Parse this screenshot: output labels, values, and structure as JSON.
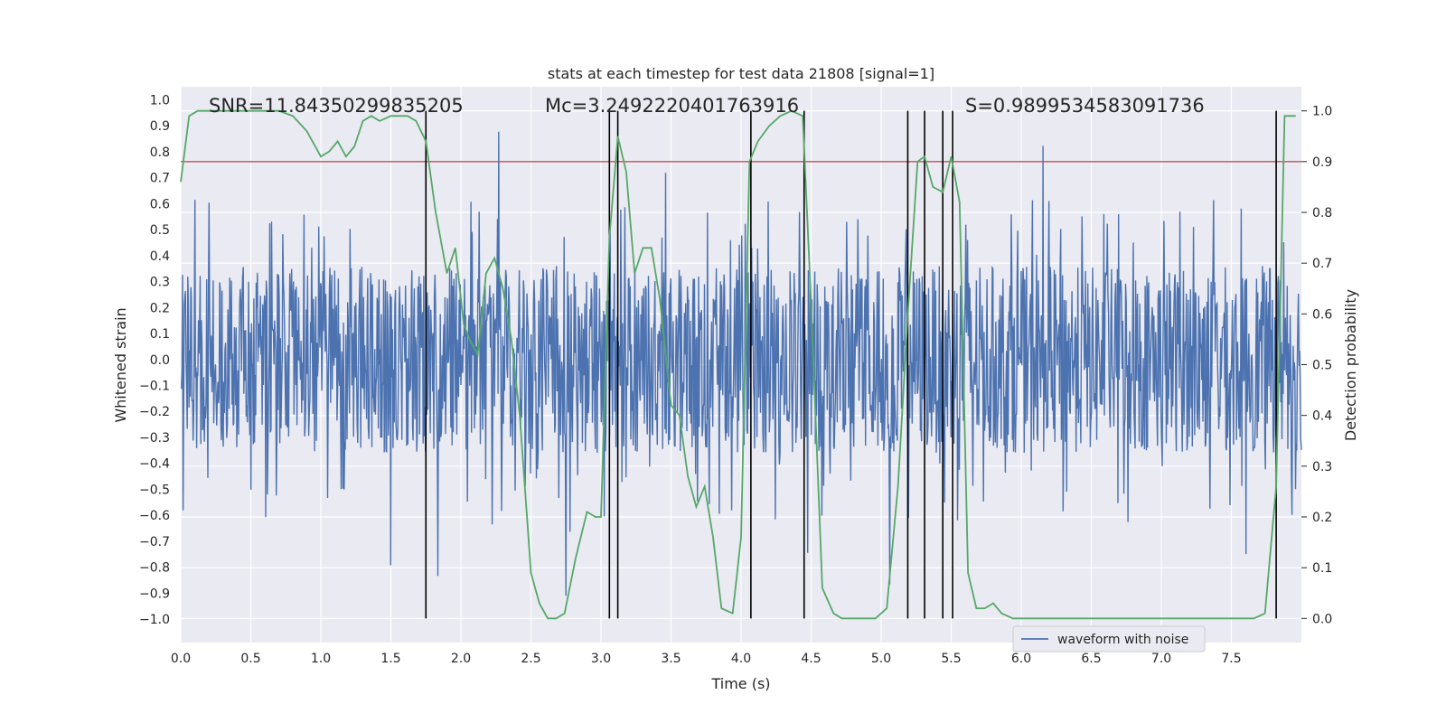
{
  "chart_data": {
    "type": "line",
    "title": "stats at each timestep for test data 21808 [signal=1]",
    "xlabel": "Time (s)",
    "ylabel_left": "Whitened strain",
    "ylabel_right": "Detection probability",
    "xlim": [
      0.0,
      8.0
    ],
    "ylim_left": [
      -1.09,
      1.05
    ],
    "ylim_right": [
      -0.0475,
      1.0475
    ],
    "x_ticks": [
      0.0,
      0.5,
      1.0,
      1.5,
      2.0,
      2.5,
      3.0,
      3.5,
      4.0,
      4.5,
      5.0,
      5.5,
      6.0,
      6.5,
      7.0,
      7.5
    ],
    "x_tick_labels": [
      "0.0",
      "0.5",
      "1.0",
      "1.5",
      "2.0",
      "2.5",
      "3.0",
      "3.5",
      "4.0",
      "4.5",
      "5.0",
      "5.5",
      "6.0",
      "6.5",
      "7.0",
      "7.5"
    ],
    "y_left_ticks": [
      1.0,
      0.9,
      0.8,
      0.7,
      0.6,
      0.5,
      0.4,
      0.3,
      0.2,
      0.1,
      0.0,
      -0.1,
      -0.2,
      -0.3,
      -0.4,
      -0.5,
      -0.6,
      -0.7,
      -0.8,
      -0.9,
      -1.0
    ],
    "y_left_tick_labels": [
      "1.0",
      "0.9",
      "0.8",
      "0.7",
      "0.6",
      "0.5",
      "0.4",
      "0.3",
      "0.2",
      "0.1",
      "0.0",
      "−0.1",
      "−0.2",
      "−0.3",
      "−0.4",
      "−0.5",
      "−0.6",
      "−0.7",
      "−0.8",
      "−0.9",
      "−1.0"
    ],
    "y_right_ticks": [
      1.0,
      0.9,
      0.8,
      0.7,
      0.6,
      0.5,
      0.4,
      0.3,
      0.2,
      0.1,
      0.0
    ],
    "y_right_tick_labels": [
      "1.0",
      "0.9",
      "0.8",
      "0.7",
      "0.6",
      "0.5",
      "0.4",
      "0.3",
      "0.2",
      "0.1",
      "0.0"
    ],
    "annotations": [
      {
        "id": "snr",
        "text": "SNR=11.84350299835205",
        "x": 0.2
      },
      {
        "id": "mc",
        "text": "Mc=3.2492220401763916",
        "x": 2.6
      },
      {
        "id": "s",
        "text": "S=0.9899534583091736",
        "x": 5.6
      }
    ],
    "threshold": {
      "value": 0.9,
      "axis": "right",
      "color": "#c44e52"
    },
    "event_lines": [
      1.75,
      3.06,
      3.12,
      4.07,
      4.45,
      5.19,
      5.31,
      5.44,
      5.51,
      7.82
    ],
    "event_line_range": [
      0.0,
      1.0
    ],
    "legend": {
      "label": "waveform with noise",
      "placement": "bottom-right"
    },
    "series": [
      {
        "name": "waveform with noise",
        "axis": "left",
        "color": "#4c72b0",
        "kind": "noise",
        "envelope": 0.36,
        "peak_max": 0.95
      },
      {
        "name": "detection probability",
        "axis": "right",
        "color": "#55a868",
        "x": [
          0.0,
          0.06,
          0.12,
          0.2,
          0.3,
          0.4,
          0.5,
          0.6,
          0.7,
          0.8,
          0.9,
          1.0,
          1.06,
          1.12,
          1.18,
          1.24,
          1.3,
          1.36,
          1.42,
          1.5,
          1.56,
          1.62,
          1.68,
          1.75,
          1.82,
          1.9,
          1.96,
          2.02,
          2.06,
          2.12,
          2.18,
          2.24,
          2.3,
          2.36,
          2.42,
          2.5,
          2.56,
          2.62,
          2.68,
          2.74,
          2.82,
          2.9,
          2.96,
          3.0,
          3.06,
          3.12,
          3.18,
          3.24,
          3.3,
          3.36,
          3.42,
          3.5,
          3.56,
          3.62,
          3.68,
          3.74,
          3.8,
          3.86,
          3.94,
          4.0,
          4.06,
          4.12,
          4.2,
          4.28,
          4.36,
          4.44,
          4.5,
          4.58,
          4.66,
          4.72,
          4.8,
          4.88,
          4.96,
          5.04,
          5.12,
          5.19,
          5.26,
          5.31,
          5.37,
          5.44,
          5.5,
          5.56,
          5.62,
          5.68,
          5.74,
          5.8,
          5.86,
          5.94,
          6.0,
          6.3,
          6.6,
          6.9,
          7.2,
          7.5,
          7.66,
          7.74,
          7.82,
          7.88,
          7.96
        ],
        "values": [
          0.86,
          0.99,
          1.0,
          1.0,
          1.0,
          1.0,
          1.0,
          1.0,
          1.0,
          0.99,
          0.96,
          0.91,
          0.92,
          0.94,
          0.91,
          0.93,
          0.98,
          0.99,
          0.98,
          0.99,
          0.99,
          0.99,
          0.98,
          0.94,
          0.8,
          0.68,
          0.73,
          0.58,
          0.55,
          0.52,
          0.68,
          0.71,
          0.65,
          0.55,
          0.4,
          0.09,
          0.03,
          0.0,
          0.0,
          0.01,
          0.12,
          0.21,
          0.2,
          0.2,
          0.75,
          0.95,
          0.88,
          0.68,
          0.73,
          0.73,
          0.63,
          0.42,
          0.4,
          0.28,
          0.22,
          0.26,
          0.16,
          0.02,
          0.01,
          0.16,
          0.9,
          0.94,
          0.97,
          0.99,
          1.0,
          0.99,
          0.62,
          0.06,
          0.01,
          0.0,
          0.0,
          0.0,
          0.0,
          0.02,
          0.26,
          0.6,
          0.9,
          0.91,
          0.85,
          0.84,
          0.91,
          0.82,
          0.09,
          0.02,
          0.02,
          0.03,
          0.01,
          0.0,
          0.0,
          0.0,
          0.0,
          0.0,
          0.0,
          0.0,
          0.0,
          0.01,
          0.26,
          0.99,
          0.99
        ]
      }
    ]
  }
}
